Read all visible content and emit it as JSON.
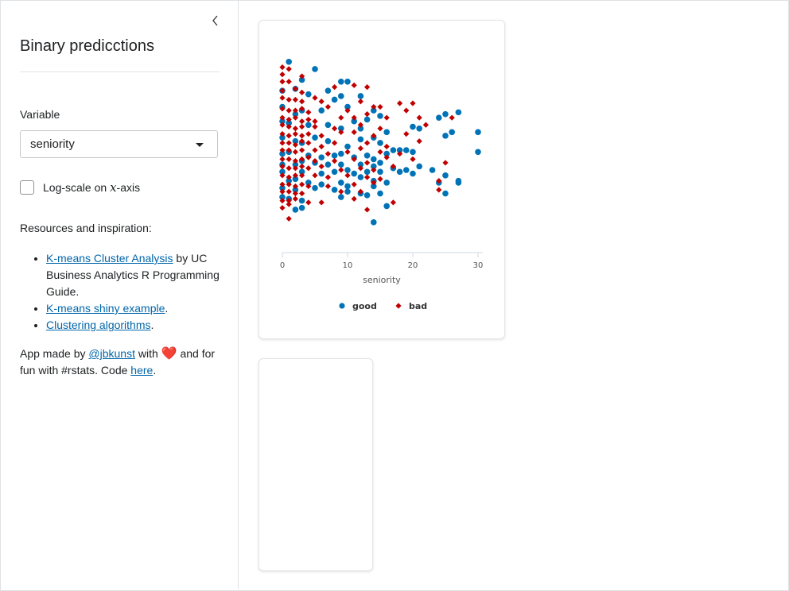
{
  "sidebar": {
    "title": "Binary predicctions",
    "variable_label": "Variable",
    "variable_value": "seniority",
    "log_scale_label": "Log-scale on ",
    "log_scale_var": "x",
    "log_scale_suffix": "-axis",
    "log_scale_checked": false,
    "resources_heading": "Resources and inspiration:",
    "resources": [
      {
        "link": "K-means Cluster Analysis",
        "rest": " by UC Business Analytics R Programming Guide."
      },
      {
        "link": "K-means shiny example",
        "rest": "."
      },
      {
        "link": "Clustering algorithms",
        "rest": "."
      }
    ],
    "credits": {
      "prefix": "App made by ",
      "author": "@jbkunst",
      "mid": " with ",
      "heart": "❤️",
      "suffix": " and for fun with #rstats. Code ",
      "code_link": "here",
      "end": "."
    }
  },
  "chart_data": {
    "type": "scatter",
    "xlabel": "seniority",
    "xlim": [
      0,
      30
    ],
    "x_ticks": [
      "0",
      "10",
      "20",
      "30"
    ],
    "colors": {
      "good": "#0073b7",
      "bad": "#c00000"
    },
    "series": [
      {
        "name": "good",
        "marker": "circle",
        "points": [
          [
            1,
            0.97
          ],
          [
            5,
            0.93
          ],
          [
            3,
            0.87
          ],
          [
            9,
            0.86
          ],
          [
            10,
            0.86
          ],
          [
            2,
            0.82
          ],
          [
            7,
            0.81
          ],
          [
            0,
            0.81
          ],
          [
            9,
            0.78
          ],
          [
            4,
            0.79
          ],
          [
            12,
            0.78
          ],
          [
            8,
            0.76
          ],
          [
            0,
            0.72
          ],
          [
            3,
            0.7
          ],
          [
            6,
            0.7
          ],
          [
            10,
            0.72
          ],
          [
            14,
            0.7
          ],
          [
            2,
            0.68
          ],
          [
            13,
            0.65
          ],
          [
            15,
            0.67
          ],
          [
            0,
            0.64
          ],
          [
            1,
            0.63
          ],
          [
            4,
            0.62
          ],
          [
            7,
            0.62
          ],
          [
            11,
            0.64
          ],
          [
            12,
            0.6
          ],
          [
            9,
            0.6
          ],
          [
            16,
            0.58
          ],
          [
            20,
            0.61
          ],
          [
            24,
            0.66
          ],
          [
            25,
            0.68
          ],
          [
            27,
            0.69
          ],
          [
            21,
            0.6
          ],
          [
            30,
            0.58
          ],
          [
            0,
            0.55
          ],
          [
            2,
            0.53
          ],
          [
            3,
            0.52
          ],
          [
            5,
            0.55
          ],
          [
            7,
            0.53
          ],
          [
            10,
            0.5
          ],
          [
            12,
            0.54
          ],
          [
            14,
            0.55
          ],
          [
            15,
            0.52
          ],
          [
            17,
            0.48
          ],
          [
            18,
            0.48
          ],
          [
            19,
            0.48
          ],
          [
            25,
            0.56
          ],
          [
            26,
            0.58
          ],
          [
            0,
            0.46
          ],
          [
            1,
            0.47
          ],
          [
            4,
            0.45
          ],
          [
            6,
            0.44
          ],
          [
            8,
            0.45
          ],
          [
            9,
            0.46
          ],
          [
            11,
            0.44
          ],
          [
            13,
            0.45
          ],
          [
            14,
            0.43
          ],
          [
            16,
            0.46
          ],
          [
            20,
            0.47
          ],
          [
            30,
            0.47
          ],
          [
            0,
            0.4
          ],
          [
            2,
            0.4
          ],
          [
            3,
            0.42
          ],
          [
            5,
            0.41
          ],
          [
            7,
            0.4
          ],
          [
            9,
            0.4
          ],
          [
            12,
            0.4
          ],
          [
            14,
            0.39
          ],
          [
            15,
            0.41
          ],
          [
            17,
            0.38
          ],
          [
            19,
            0.37
          ],
          [
            21,
            0.39
          ],
          [
            0,
            0.36
          ],
          [
            3,
            0.36
          ],
          [
            6,
            0.35
          ],
          [
            8,
            0.36
          ],
          [
            10,
            0.37
          ],
          [
            11,
            0.35
          ],
          [
            13,
            0.36
          ],
          [
            15,
            0.36
          ],
          [
            18,
            0.36
          ],
          [
            20,
            0.35
          ],
          [
            23,
            0.37
          ],
          [
            25,
            0.34
          ],
          [
            1,
            0.31
          ],
          [
            2,
            0.32
          ],
          [
            4,
            0.3
          ],
          [
            6,
            0.29
          ],
          [
            9,
            0.3
          ],
          [
            12,
            0.33
          ],
          [
            14,
            0.31
          ],
          [
            16,
            0.3
          ],
          [
            24,
            0.3
          ],
          [
            27,
            0.3
          ],
          [
            0,
            0.27
          ],
          [
            2,
            0.26
          ],
          [
            5,
            0.27
          ],
          [
            8,
            0.26
          ],
          [
            10,
            0.28
          ],
          [
            12,
            0.24
          ],
          [
            15,
            0.24
          ],
          [
            0,
            0.22
          ],
          [
            1,
            0.21
          ],
          [
            3,
            0.2
          ],
          [
            9,
            0.22
          ],
          [
            10,
            0.25
          ],
          [
            14,
            0.28
          ],
          [
            13,
            0.23
          ],
          [
            25,
            0.24
          ],
          [
            27,
            0.31
          ],
          [
            16,
            0.17
          ],
          [
            2,
            0.15
          ],
          [
            3,
            0.16
          ],
          [
            14,
            0.08
          ]
        ]
      },
      {
        "name": "bad",
        "marker": "diamond",
        "points": [
          [
            0,
            0.94
          ],
          [
            1,
            0.93
          ],
          [
            0,
            0.9
          ],
          [
            3,
            0.89
          ],
          [
            0,
            0.86
          ],
          [
            1,
            0.86
          ],
          [
            2,
            0.82
          ],
          [
            0,
            0.81
          ],
          [
            3,
            0.8
          ],
          [
            8,
            0.83
          ],
          [
            11,
            0.84
          ],
          [
            13,
            0.83
          ],
          [
            0,
            0.77
          ],
          [
            1,
            0.76
          ],
          [
            2,
            0.76
          ],
          [
            3,
            0.75
          ],
          [
            5,
            0.77
          ],
          [
            6,
            0.75
          ],
          [
            12,
            0.75
          ],
          [
            15,
            0.72
          ],
          [
            18,
            0.74
          ],
          [
            20,
            0.74
          ],
          [
            0,
            0.71
          ],
          [
            1,
            0.7
          ],
          [
            2,
            0.7
          ],
          [
            3,
            0.71
          ],
          [
            4,
            0.69
          ],
          [
            7,
            0.72
          ],
          [
            10,
            0.7
          ],
          [
            14,
            0.72
          ],
          [
            19,
            0.7
          ],
          [
            0,
            0.66
          ],
          [
            1,
            0.65
          ],
          [
            2,
            0.66
          ],
          [
            3,
            0.64
          ],
          [
            4,
            0.65
          ],
          [
            5,
            0.64
          ],
          [
            9,
            0.66
          ],
          [
            11,
            0.66
          ],
          [
            13,
            0.68
          ],
          [
            16,
            0.66
          ],
          [
            21,
            0.66
          ],
          [
            26,
            0.66
          ],
          [
            0,
            0.62
          ],
          [
            1,
            0.61
          ],
          [
            2,
            0.6
          ],
          [
            3,
            0.61
          ],
          [
            5,
            0.61
          ],
          [
            8,
            0.6
          ],
          [
            12,
            0.62
          ],
          [
            15,
            0.6
          ],
          [
            22,
            0.62
          ],
          [
            0,
            0.57
          ],
          [
            1,
            0.56
          ],
          [
            2,
            0.57
          ],
          [
            3,
            0.56
          ],
          [
            4,
            0.57
          ],
          [
            6,
            0.56
          ],
          [
            9,
            0.58
          ],
          [
            11,
            0.58
          ],
          [
            14,
            0.56
          ],
          [
            19,
            0.57
          ],
          [
            0,
            0.52
          ],
          [
            1,
            0.52
          ],
          [
            2,
            0.51
          ],
          [
            3,
            0.53
          ],
          [
            4,
            0.52
          ],
          [
            6,
            0.5
          ],
          [
            8,
            0.52
          ],
          [
            13,
            0.52
          ],
          [
            16,
            0.5
          ],
          [
            21,
            0.53
          ],
          [
            0,
            0.48
          ],
          [
            1,
            0.48
          ],
          [
            2,
            0.47
          ],
          [
            3,
            0.48
          ],
          [
            5,
            0.48
          ],
          [
            7,
            0.46
          ],
          [
            10,
            0.47
          ],
          [
            12,
            0.49
          ],
          [
            15,
            0.47
          ],
          [
            18,
            0.46
          ],
          [
            0,
            0.43
          ],
          [
            1,
            0.43
          ],
          [
            2,
            0.42
          ],
          [
            3,
            0.43
          ],
          [
            4,
            0.44
          ],
          [
            5,
            0.42
          ],
          [
            8,
            0.42
          ],
          [
            11,
            0.43
          ],
          [
            13,
            0.41
          ],
          [
            16,
            0.44
          ],
          [
            20,
            0.43
          ],
          [
            25,
            0.41
          ],
          [
            0,
            0.39
          ],
          [
            1,
            0.38
          ],
          [
            2,
            0.38
          ],
          [
            3,
            0.39
          ],
          [
            4,
            0.38
          ],
          [
            6,
            0.39
          ],
          [
            9,
            0.37
          ],
          [
            12,
            0.38
          ],
          [
            14,
            0.37
          ],
          [
            17,
            0.39
          ],
          [
            0,
            0.34
          ],
          [
            1,
            0.33
          ],
          [
            2,
            0.34
          ],
          [
            3,
            0.34
          ],
          [
            5,
            0.34
          ],
          [
            7,
            0.33
          ],
          [
            10,
            0.34
          ],
          [
            13,
            0.33
          ],
          [
            15,
            0.32
          ],
          [
            24,
            0.31
          ],
          [
            0,
            0.29
          ],
          [
            1,
            0.29
          ],
          [
            2,
            0.28
          ],
          [
            3,
            0.29
          ],
          [
            4,
            0.28
          ],
          [
            7,
            0.28
          ],
          [
            11,
            0.29
          ],
          [
            14,
            0.3
          ],
          [
            0,
            0.25
          ],
          [
            1,
            0.25
          ],
          [
            2,
            0.24
          ],
          [
            3,
            0.24
          ],
          [
            9,
            0.25
          ],
          [
            12,
            0.25
          ],
          [
            24,
            0.26
          ],
          [
            0,
            0.2
          ],
          [
            1,
            0.2
          ],
          [
            2,
            0.21
          ],
          [
            4,
            0.19
          ],
          [
            6,
            0.19
          ],
          [
            11,
            0.21
          ],
          [
            17,
            0.19
          ],
          [
            0,
            0.16
          ],
          [
            1,
            0.18
          ],
          [
            13,
            0.15
          ],
          [
            1,
            0.1
          ]
        ]
      }
    ]
  }
}
